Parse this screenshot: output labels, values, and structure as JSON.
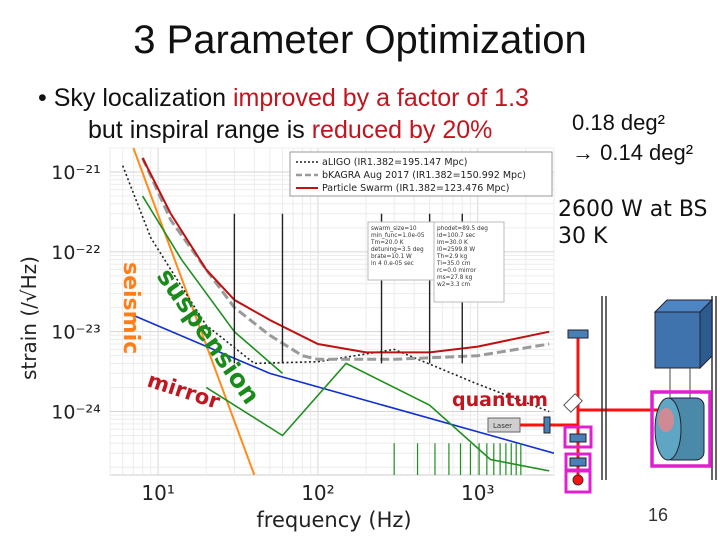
{
  "slide": {
    "title": "3 Parameter Optimization",
    "bullet_part1": "Sky localization ",
    "bullet_part2": "improved by a factor of 1.3",
    "line2_part1": "but inspiral range is ",
    "line2_part2": "reduced by 20%",
    "sky_before": "0.18 deg²",
    "sky_after": "→ 0.14 deg²",
    "laser_power": "2600 W at BS",
    "temperature": "30 K",
    "page_number": "16"
  },
  "colors": {
    "accent_red": "#c0161f",
    "magenta_box": "#e020d0",
    "laser_red": "#ff1010"
  },
  "chart_data": {
    "type": "line",
    "xlabel": "frequency (Hz)",
    "ylabel": "strain (/√Hz)",
    "xscale": "log",
    "yscale": "log",
    "xlim": [
      5,
      3000
    ],
    "ylim": [
      1.6e-25,
      2e-21
    ],
    "x_ticks": [
      10,
      100,
      1000
    ],
    "x_tick_labels": [
      "10¹",
      "10²",
      "10³"
    ],
    "y_ticks": [
      1e-24,
      1e-23,
      1e-22,
      1e-21
    ],
    "y_tick_labels": [
      "10⁻²⁴",
      "10⁻²³",
      "10⁻²²",
      "10⁻²¹"
    ],
    "legend": {
      "position": "top-right",
      "entries": [
        "aLIGO (IR1.382=195.147 Mpc)",
        "bKAGRA Aug 2017 (IR1.382=150.992 Mpc)",
        "Particle Swarm (IR1.382=123.476 Mpc)"
      ]
    },
    "param_box_1": "swarm_size=10\nmin_func=1.0e-05\nTm=20.0 K\ndetuning=3.5 deg\nbrate=10.1 W\nln 4 0.e-05 sec",
    "param_box_2": "phodet=89.5 deg\nld=100.7 sec\nIm=30.0 K\nI0=2599.8 W\nTh=2.9 kg\nTi=35.0 cm\nrc=0.0 mirror\nms=27.8 kg\nw2=3.3 cm",
    "series": [
      {
        "name": "aLIGO (IR1.382=195.147 Mpc)",
        "x": [
          6,
          9,
          12,
          20,
          40,
          100,
          300,
          1000,
          2800
        ],
        "y": [
          1.2e-21,
          1.5e-22,
          6e-23,
          1.2e-23,
          4e-24,
          4.2e-24,
          6e-24,
          2.2e-24,
          1e-24
        ]
      },
      {
        "name": "bKAGRA Aug 2017 (IR1.382=150.992 Mpc)",
        "x": [
          8,
          12,
          20,
          30,
          50,
          80,
          100,
          300,
          1000,
          2800
        ],
        "y": [
          1.5e-21,
          2.5e-22,
          6e-23,
          2e-23,
          9e-24,
          5e-24,
          4.5e-24,
          4.5e-24,
          5e-24,
          7e-24
        ]
      },
      {
        "name": "Particle Swarm (IR1.382=123.476 Mpc)",
        "x": [
          8,
          12,
          20,
          30,
          50,
          100,
          200,
          500,
          1000,
          2800
        ],
        "y": [
          1.5e-21,
          3e-22,
          6e-23,
          2.5e-23,
          1.4e-23,
          7e-24,
          5.5e-24,
          5.5e-24,
          6.5e-24,
          1e-23
        ]
      }
    ],
    "components": [
      {
        "label": "seismic",
        "x": [
          7,
          40
        ],
        "y": [
          2e-21,
          1.6e-25
        ]
      },
      {
        "label": "suspension",
        "x": [
          8,
          14,
          30,
          60
        ],
        "y": [
          5e-22,
          8e-23,
          1e-23,
          3e-24
        ]
      },
      {
        "label": "mirror",
        "x": [
          7,
          50,
          3000
        ],
        "y": [
          1.6e-23,
          3e-24,
          3e-25
        ]
      },
      {
        "label": "quantum",
        "x": [
          20,
          60,
          150,
          500,
          1200,
          2800
        ],
        "y": [
          2e-24,
          5e-25,
          4e-24,
          1.2e-24,
          2.5e-25,
          1.8e-25
        ]
      }
    ],
    "component_labels": [
      "seismic",
      "suspension",
      "mirror",
      "quantum"
    ]
  }
}
